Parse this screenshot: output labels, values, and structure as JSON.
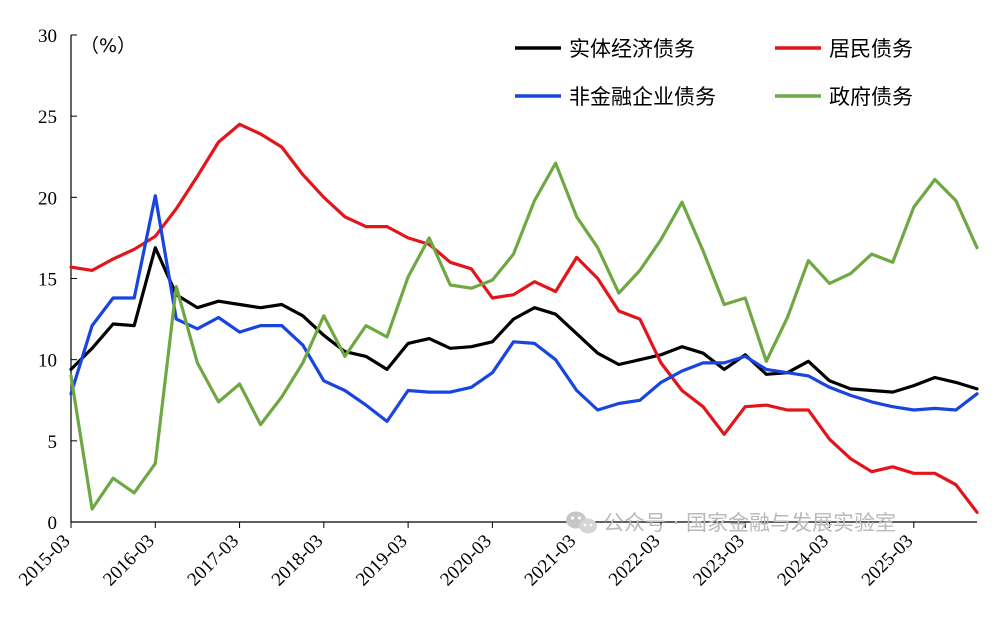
{
  "chart_data": {
    "type": "line",
    "unit_label": "（%）",
    "ylim": [
      0,
      30
    ],
    "yticks": [
      "0",
      "5",
      "10",
      "15",
      "20",
      "25",
      "30"
    ],
    "x_labels": [
      "2015-03",
      "2016-03",
      "2017-03",
      "2018-03",
      "2019-03",
      "2020-03",
      "2021-03",
      "2022-03",
      "2023-03",
      "2024-03",
      "2025-03"
    ],
    "quarters_per_label": 4,
    "legend_position": "top-right",
    "series": [
      {
        "name": "实体经济债务",
        "color": "#000000",
        "values": [
          9.4,
          10.7,
          12.2,
          12.1,
          16.9,
          14.0,
          13.2,
          13.6,
          13.4,
          13.2,
          13.4,
          12.7,
          11.5,
          10.5,
          10.2,
          9.4,
          11.0,
          11.3,
          10.7,
          10.8,
          11.1,
          12.5,
          13.2,
          12.8,
          11.6,
          10.4,
          9.7,
          10.0,
          10.3,
          10.8,
          10.4,
          9.4,
          10.3,
          9.1,
          9.2,
          9.9,
          8.7,
          8.2,
          8.1,
          8.0,
          8.4,
          8.9,
          8.6,
          8.2
        ]
      },
      {
        "name": "居民债务",
        "color": "#e4141b",
        "values": [
          15.7,
          15.5,
          16.2,
          16.8,
          17.6,
          19.3,
          21.3,
          23.4,
          24.5,
          23.9,
          23.1,
          21.4,
          20.0,
          18.8,
          18.2,
          18.2,
          17.5,
          17.1,
          16.0,
          15.6,
          13.8,
          14.0,
          14.8,
          14.2,
          16.3,
          15.0,
          13.0,
          12.5,
          9.8,
          8.1,
          7.1,
          5.4,
          7.1,
          7.2,
          6.9,
          6.9,
          5.1,
          3.9,
          3.1,
          3.4,
          3.0,
          3.0,
          2.3,
          0.6
        ]
      },
      {
        "name": "非金融企业债务",
        "color": "#1844e0",
        "values": [
          7.9,
          12.1,
          13.8,
          13.8,
          20.1,
          12.5,
          11.9,
          12.6,
          11.7,
          12.1,
          12.1,
          10.9,
          8.7,
          8.1,
          7.2,
          6.2,
          8.1,
          8.0,
          8.0,
          8.3,
          9.2,
          11.1,
          11.0,
          10.0,
          8.1,
          6.9,
          7.3,
          7.5,
          8.6,
          9.3,
          9.8,
          9.8,
          10.2,
          9.4,
          9.2,
          9.0,
          8.3,
          7.8,
          7.4,
          7.1,
          6.9,
          7.0,
          6.9,
          7.9
        ]
      },
      {
        "name": "政府债务",
        "color": "#6fa843",
        "values": [
          9.0,
          0.8,
          2.7,
          1.8,
          3.6,
          14.5,
          9.8,
          7.4,
          8.5,
          6.0,
          7.7,
          9.8,
          12.7,
          10.2,
          12.1,
          11.4,
          15.1,
          17.5,
          14.6,
          14.4,
          14.9,
          16.5,
          19.8,
          22.1,
          18.8,
          16.9,
          14.1,
          15.5,
          17.4,
          19.7,
          16.7,
          13.4,
          13.8,
          9.9,
          12.6,
          16.1,
          14.7,
          15.3,
          16.5,
          16.0,
          19.4,
          21.1,
          19.8,
          16.9
        ]
      }
    ]
  },
  "watermark": {
    "text": "公众号 · 国家金融与发展实验室",
    "icon": "wechat-icon"
  }
}
